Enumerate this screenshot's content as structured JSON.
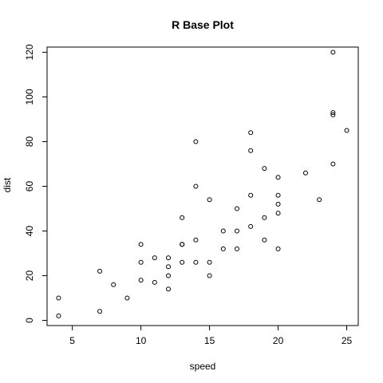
{
  "chart_data": {
    "type": "scatter",
    "title": "R Base Plot",
    "xlabel": "speed",
    "ylabel": "dist",
    "xlim": [
      3.16,
      25.84
    ],
    "ylim": [
      -2.32,
      122.32
    ],
    "x_ticks": [
      5,
      10,
      15,
      20,
      25
    ],
    "y_ticks": [
      0,
      20,
      40,
      60,
      80,
      100,
      120
    ],
    "grid": false,
    "legend": "none",
    "marker": "open-circle",
    "points": [
      {
        "x": 4,
        "y": 2
      },
      {
        "x": 4,
        "y": 10
      },
      {
        "x": 7,
        "y": 4
      },
      {
        "x": 7,
        "y": 22
      },
      {
        "x": 8,
        "y": 16
      },
      {
        "x": 9,
        "y": 10
      },
      {
        "x": 10,
        "y": 18
      },
      {
        "x": 10,
        "y": 26
      },
      {
        "x": 10,
        "y": 34
      },
      {
        "x": 11,
        "y": 17
      },
      {
        "x": 11,
        "y": 28
      },
      {
        "x": 12,
        "y": 14
      },
      {
        "x": 12,
        "y": 20
      },
      {
        "x": 12,
        "y": 24
      },
      {
        "x": 12,
        "y": 28
      },
      {
        "x": 13,
        "y": 26
      },
      {
        "x": 13,
        "y": 34
      },
      {
        "x": 13,
        "y": 34
      },
      {
        "x": 13,
        "y": 46
      },
      {
        "x": 14,
        "y": 26
      },
      {
        "x": 14,
        "y": 36
      },
      {
        "x": 14,
        "y": 60
      },
      {
        "x": 14,
        "y": 80
      },
      {
        "x": 15,
        "y": 20
      },
      {
        "x": 15,
        "y": 26
      },
      {
        "x": 15,
        "y": 54
      },
      {
        "x": 16,
        "y": 32
      },
      {
        "x": 16,
        "y": 40
      },
      {
        "x": 17,
        "y": 32
      },
      {
        "x": 17,
        "y": 40
      },
      {
        "x": 17,
        "y": 50
      },
      {
        "x": 18,
        "y": 42
      },
      {
        "x": 18,
        "y": 56
      },
      {
        "x": 18,
        "y": 76
      },
      {
        "x": 18,
        "y": 84
      },
      {
        "x": 19,
        "y": 36
      },
      {
        "x": 19,
        "y": 46
      },
      {
        "x": 19,
        "y": 68
      },
      {
        "x": 20,
        "y": 32
      },
      {
        "x": 20,
        "y": 48
      },
      {
        "x": 20,
        "y": 52
      },
      {
        "x": 20,
        "y": 56
      },
      {
        "x": 20,
        "y": 64
      },
      {
        "x": 22,
        "y": 66
      },
      {
        "x": 23,
        "y": 54
      },
      {
        "x": 24,
        "y": 70
      },
      {
        "x": 24,
        "y": 92
      },
      {
        "x": 24,
        "y": 93
      },
      {
        "x": 24,
        "y": 120
      },
      {
        "x": 25,
        "y": 85
      }
    ],
    "colors": {
      "marker": "#000000",
      "axis": "#000000",
      "background": "#ffffff"
    }
  }
}
